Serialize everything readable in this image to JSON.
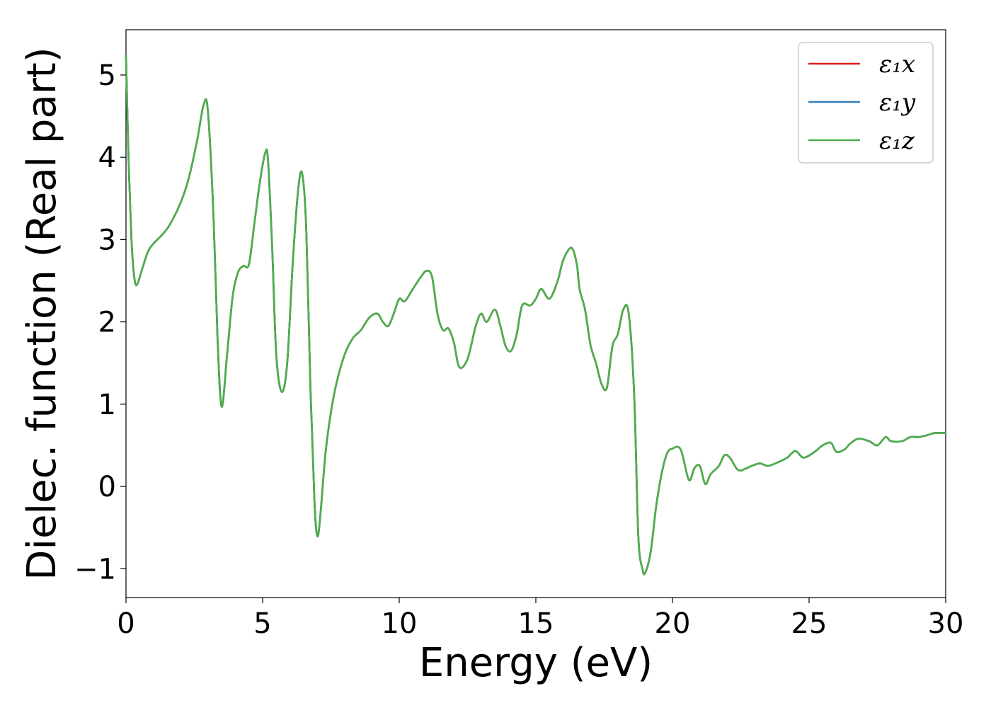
{
  "chart_data": {
    "type": "line",
    "title": "",
    "xlabel": "Energy (eV)",
    "ylabel": "Dielec. function (Real part)",
    "xlim": [
      0,
      30
    ],
    "ylim": [
      -1.35,
      5.55
    ],
    "xticks": [
      "0",
      "5",
      "10",
      "15",
      "20",
      "25",
      "30"
    ],
    "xtick_values": [
      0,
      5,
      10,
      15,
      20,
      25,
      30
    ],
    "yticks": [
      "−1",
      "0",
      "1",
      "2",
      "3",
      "4",
      "5"
    ],
    "ytick_values": [
      -1,
      0,
      1,
      2,
      3,
      4,
      5
    ],
    "grid": false,
    "legend_position": "top-right",
    "x": [
      0,
      0.1,
      0.2,
      0.3,
      0.4,
      0.6,
      0.8,
      1.0,
      1.3,
      1.6,
      2.0,
      2.3,
      2.6,
      2.85,
      3.0,
      3.2,
      3.35,
      3.5,
      3.7,
      3.9,
      4.1,
      4.3,
      4.5,
      4.7,
      4.9,
      5.1,
      5.2,
      5.35,
      5.5,
      5.7,
      5.9,
      6.1,
      6.3,
      6.45,
      6.6,
      6.75,
      6.9,
      7.0,
      7.1,
      7.3,
      7.5,
      7.7,
      8.0,
      8.3,
      8.6,
      8.9,
      9.2,
      9.4,
      9.6,
      9.8,
      10.0,
      10.2,
      10.5,
      10.8,
      11.0,
      11.2,
      11.4,
      11.6,
      11.8,
      12.0,
      12.2,
      12.5,
      12.8,
      13.0,
      13.2,
      13.5,
      13.7,
      13.9,
      14.1,
      14.3,
      14.5,
      14.8,
      15.0,
      15.2,
      15.5,
      15.8,
      16.0,
      16.3,
      16.5,
      16.6,
      16.8,
      17.0,
      17.2,
      17.4,
      17.6,
      17.8,
      18.0,
      18.2,
      18.4,
      18.6,
      18.75,
      18.9,
      19.0,
      19.2,
      19.4,
      19.6,
      19.8,
      20.0,
      20.3,
      20.6,
      20.8,
      21.0,
      21.2,
      21.4,
      21.7,
      21.9,
      22.1,
      22.4,
      22.7,
      22.9,
      23.2,
      23.5,
      23.9,
      24.2,
      24.5,
      24.8,
      25.2,
      25.5,
      25.8,
      26.0,
      26.3,
      26.5,
      26.8,
      27.2,
      27.5,
      27.8,
      28.0,
      28.4,
      28.7,
      29.0,
      29.3,
      29.6,
      30.0
    ],
    "series": [
      {
        "name": "ε₁x",
        "color": "#e41a1c",
        "values": "same-as-z"
      },
      {
        "name": "ε₁y",
        "color": "#377eb8",
        "values": "same-as-z"
      },
      {
        "name": "ε₁z",
        "color": "#4daf4a",
        "values": [
          5.25,
          3.9,
          3.0,
          2.55,
          2.45,
          2.65,
          2.85,
          2.95,
          3.05,
          3.18,
          3.45,
          3.75,
          4.2,
          4.65,
          4.55,
          3.3,
          1.8,
          0.97,
          1.6,
          2.3,
          2.6,
          2.68,
          2.7,
          3.2,
          3.7,
          4.06,
          3.95,
          2.9,
          1.6,
          1.15,
          1.5,
          2.7,
          3.6,
          3.8,
          3.1,
          1.2,
          -0.2,
          -0.6,
          -0.4,
          0.4,
          0.9,
          1.25,
          1.6,
          1.8,
          1.9,
          2.05,
          2.1,
          2.0,
          1.95,
          2.1,
          2.28,
          2.25,
          2.4,
          2.55,
          2.62,
          2.55,
          2.1,
          1.9,
          1.92,
          1.75,
          1.45,
          1.55,
          1.95,
          2.1,
          2.0,
          2.15,
          1.95,
          1.7,
          1.65,
          1.85,
          2.2,
          2.2,
          2.28,
          2.4,
          2.28,
          2.5,
          2.75,
          2.9,
          2.7,
          2.4,
          2.15,
          1.72,
          1.5,
          1.25,
          1.2,
          1.7,
          1.85,
          2.15,
          2.1,
          1.1,
          -0.6,
          -1.0,
          -1.05,
          -0.8,
          -0.25,
          0.15,
          0.4,
          0.46,
          0.45,
          0.08,
          0.22,
          0.25,
          0.03,
          0.15,
          0.25,
          0.38,
          0.35,
          0.2,
          0.22,
          0.25,
          0.28,
          0.25,
          0.3,
          0.35,
          0.43,
          0.35,
          0.42,
          0.5,
          0.53,
          0.42,
          0.45,
          0.52,
          0.58,
          0.55,
          0.5,
          0.6,
          0.55,
          0.55,
          0.6,
          0.6,
          0.62,
          0.65,
          0.65
        ]
      }
    ]
  }
}
